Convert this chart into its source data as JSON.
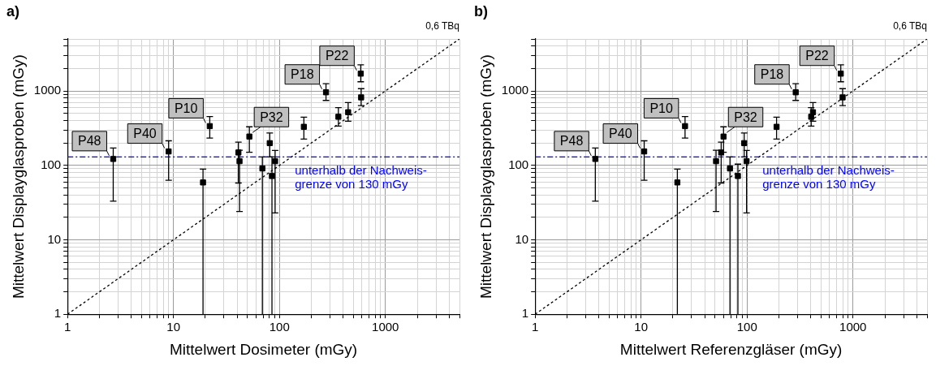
{
  "chart_data": [
    {
      "type": "scatter",
      "title": "a)",
      "subtitle": "0,6 TBq",
      "xlabel": "Mittelwert Dosimeter (mGy)",
      "ylabel": "Mittelwert Displayglasproben (mGy)",
      "log": "xy",
      "grid": true,
      "xlim": [
        1,
        5000
      ],
      "ylim": [
        1,
        5000
      ],
      "xticks": [
        1,
        {
          "value": 2,
          "label": null
        },
        {
          "value": 3,
          "label": null
        },
        {
          "value": 4,
          "label": null
        },
        {
          "value": 5,
          "label": null
        },
        {
          "value": 6,
          "label": null
        },
        {
          "value": 7,
          "label": null
        },
        {
          "value": 8,
          "label": null
        },
        {
          "value": 9,
          "label": null
        },
        10,
        {
          "value": 20,
          "label": null
        },
        {
          "value": 30,
          "label": null
        },
        {
          "value": 40,
          "label": null
        },
        {
          "value": 50,
          "label": null
        },
        {
          "value": 60,
          "label": null
        },
        {
          "value": 70,
          "label": null
        },
        {
          "value": 80,
          "label": null
        },
        {
          "value": 90,
          "label": null
        },
        100,
        {
          "value": 200,
          "label": null
        },
        {
          "value": 300,
          "label": null
        },
        {
          "value": 400,
          "label": null
        },
        {
          "value": 500,
          "label": null
        },
        {
          "value": 600,
          "label": null
        },
        {
          "value": 700,
          "label": null
        },
        {
          "value": 800,
          "label": null
        },
        {
          "value": 900,
          "label": null
        },
        1000,
        {
          "value": 2000,
          "label": null
        },
        {
          "value": 3000,
          "label": null
        },
        {
          "value": 4000,
          "label": null
        },
        {
          "value": 5000,
          "label": null
        }
      ],
      "yticks": [
        1,
        {
          "value": 2,
          "label": null
        },
        {
          "value": 3,
          "label": null
        },
        {
          "value": 4,
          "label": null
        },
        {
          "value": 5,
          "label": null
        },
        {
          "value": 6,
          "label": null
        },
        {
          "value": 7,
          "label": null
        },
        {
          "value": 8,
          "label": null
        },
        {
          "value": 9,
          "label": null
        },
        10,
        {
          "value": 20,
          "label": null
        },
        {
          "value": 30,
          "label": null
        },
        {
          "value": 40,
          "label": null
        },
        {
          "value": 50,
          "label": null
        },
        {
          "value": 60,
          "label": null
        },
        {
          "value": 70,
          "label": null
        },
        {
          "value": 80,
          "label": null
        },
        {
          "value": 90,
          "label": null
        },
        100,
        {
          "value": 200,
          "label": null
        },
        {
          "value": 300,
          "label": null
        },
        {
          "value": 400,
          "label": null
        },
        {
          "value": 500,
          "label": null
        },
        {
          "value": 600,
          "label": null
        },
        {
          "value": 700,
          "label": null
        },
        {
          "value": 800,
          "label": null
        },
        {
          "value": 900,
          "label": null
        },
        1000,
        {
          "value": 2000,
          "label": null
        },
        {
          "value": 3000,
          "label": null
        },
        {
          "value": 4000,
          "label": null
        },
        {
          "value": 5000,
          "label": null
        }
      ],
      "series": [
        {
          "type": "scatter",
          "color": "#000000",
          "marker": "square",
          "x": [
            2.7,
            9,
            22,
            19,
            41,
            42,
            52,
            69,
            81,
            85,
            91,
            170,
            275,
            360,
            445,
            585,
            590
          ],
          "values": [
            122,
            154,
            337,
            59,
            149,
            114,
            244,
            91,
            199,
            72,
            114,
            330,
            960,
            450,
            518,
            1710,
            820
          ],
          "errors": [
            [
              33,
              171
            ],
            [
              63,
              214
            ],
            [
              233,
              452
            ],
            [
              1,
              89
            ],
            [
              58,
              205
            ],
            [
              24,
              160
            ],
            [
              150,
              330
            ],
            [
              1,
              130
            ],
            [
              130,
              272
            ],
            [
              1,
              130
            ],
            [
              23,
              159
            ],
            [
              226,
              445
            ],
            [
              746,
              1250
            ],
            [
              337,
              598
            ],
            [
              392,
              697
            ],
            [
              1330,
              2245
            ],
            [
              636,
              1074
            ]
          ]
        },
        {
          "type": "line",
          "color": "#000000",
          "marker": "none",
          "line_style": "dotted",
          "x": [
            1,
            5000
          ],
          "values": [
            1,
            5000
          ]
        }
      ],
      "ref_lines": [
        {
          "axis": "y",
          "value": 130,
          "label": "unterhalb der Nachweis-\ngrenze von 130 mGy",
          "color": "#0000ff",
          "line_style": "dashed"
        }
      ],
      "annotations": [
        {
          "text": "P48",
          "x": 2.7,
          "y": 122
        },
        {
          "text": "P40",
          "x": 9,
          "y": 154
        },
        {
          "text": "P10",
          "x": 22,
          "y": 337
        },
        {
          "text": "P32",
          "x": 52,
          "y": 244
        },
        {
          "text": "P18",
          "x": 275,
          "y": 960
        },
        {
          "text": "P22",
          "x": 585,
          "y": 1710
        }
      ]
    },
    {
      "type": "scatter",
      "title": "b)",
      "subtitle": "0,6 TBq",
      "xlabel": "Mittelwert Referenzgläser (mGy)",
      "ylabel": "Mittelwert Displayglasproben (mGy)",
      "log": "xy",
      "grid": true,
      "xlim": [
        1,
        5000
      ],
      "ylim": [
        1,
        5000
      ],
      "xticks": [
        1,
        {
          "value": 2,
          "label": null
        },
        {
          "value": 3,
          "label": null
        },
        {
          "value": 4,
          "label": null
        },
        {
          "value": 5,
          "label": null
        },
        {
          "value": 6,
          "label": null
        },
        {
          "value": 7,
          "label": null
        },
        {
          "value": 8,
          "label": null
        },
        {
          "value": 9,
          "label": null
        },
        10,
        {
          "value": 20,
          "label": null
        },
        {
          "value": 30,
          "label": null
        },
        {
          "value": 40,
          "label": null
        },
        {
          "value": 50,
          "label": null
        },
        {
          "value": 60,
          "label": null
        },
        {
          "value": 70,
          "label": null
        },
        {
          "value": 80,
          "label": null
        },
        {
          "value": 90,
          "label": null
        },
        100,
        {
          "value": 200,
          "label": null
        },
        {
          "value": 300,
          "label": null
        },
        {
          "value": 400,
          "label": null
        },
        {
          "value": 500,
          "label": null
        },
        {
          "value": 600,
          "label": null
        },
        {
          "value": 700,
          "label": null
        },
        {
          "value": 800,
          "label": null
        },
        {
          "value": 900,
          "label": null
        },
        1000,
        {
          "value": 2000,
          "label": null
        },
        {
          "value": 3000,
          "label": null
        },
        {
          "value": 4000,
          "label": null
        },
        {
          "value": 5000,
          "label": null
        }
      ],
      "yticks": [
        1,
        {
          "value": 2,
          "label": null
        },
        {
          "value": 3,
          "label": null
        },
        {
          "value": 4,
          "label": null
        },
        {
          "value": 5,
          "label": null
        },
        {
          "value": 6,
          "label": null
        },
        {
          "value": 7,
          "label": null
        },
        {
          "value": 8,
          "label": null
        },
        {
          "value": 9,
          "label": null
        },
        10,
        {
          "value": 20,
          "label": null
        },
        {
          "value": 30,
          "label": null
        },
        {
          "value": 40,
          "label": null
        },
        {
          "value": 50,
          "label": null
        },
        {
          "value": 60,
          "label": null
        },
        {
          "value": 70,
          "label": null
        },
        {
          "value": 80,
          "label": null
        },
        {
          "value": 90,
          "label": null
        },
        100,
        {
          "value": 200,
          "label": null
        },
        {
          "value": 300,
          "label": null
        },
        {
          "value": 400,
          "label": null
        },
        {
          "value": 500,
          "label": null
        },
        {
          "value": 600,
          "label": null
        },
        {
          "value": 700,
          "label": null
        },
        {
          "value": 800,
          "label": null
        },
        {
          "value": 900,
          "label": null
        },
        1000,
        {
          "value": 2000,
          "label": null
        },
        {
          "value": 3000,
          "label": null
        },
        {
          "value": 4000,
          "label": null
        },
        {
          "value": 5000,
          "label": null
        }
      ],
      "series": [
        {
          "type": "scatter",
          "color": "#000000",
          "marker": "square",
          "x": [
            3.7,
            10.7,
            26,
            22,
            51,
            57,
            60,
            69,
            82,
            94,
            99,
            190,
            288,
            403,
            419,
            767,
            798
          ],
          "values": [
            122,
            154,
            337,
            59,
            114,
            149,
            244,
            91,
            72,
            199,
            114,
            330,
            960,
            450,
            518,
            1710,
            820
          ],
          "errors": [
            [
              33,
              171
            ],
            [
              63,
              214
            ],
            [
              233,
              452
            ],
            [
              1,
              89
            ],
            [
              24,
              160
            ],
            [
              58,
              205
            ],
            [
              150,
              330
            ],
            [
              1,
              130
            ],
            [
              1,
              104
            ],
            [
              130,
              272
            ],
            [
              23,
              159
            ],
            [
              226,
              445
            ],
            [
              746,
              1250
            ],
            [
              337,
              598
            ],
            [
              392,
              697
            ],
            [
              1330,
              2245
            ],
            [
              636,
              1074
            ]
          ]
        },
        {
          "type": "line",
          "color": "#000000",
          "marker": "none",
          "line_style": "dotted",
          "x": [
            1,
            5000
          ],
          "values": [
            1,
            5000
          ]
        }
      ],
      "ref_lines": [
        {
          "axis": "y",
          "value": 130,
          "label": "unterhalb der Nachweis-\ngrenze von 130 mGy",
          "color": "#0000ff",
          "line_style": "dashed"
        }
      ],
      "annotations": [
        {
          "text": "P48",
          "x": 3.7,
          "y": 122
        },
        {
          "text": "P40",
          "x": 10.7,
          "y": 154
        },
        {
          "text": "P10",
          "x": 26,
          "y": 337
        },
        {
          "text": "P32",
          "x": 60,
          "y": 244
        },
        {
          "text": "P18",
          "x": 288,
          "y": 960
        },
        {
          "text": "P22",
          "x": 767,
          "y": 1710
        }
      ]
    }
  ]
}
